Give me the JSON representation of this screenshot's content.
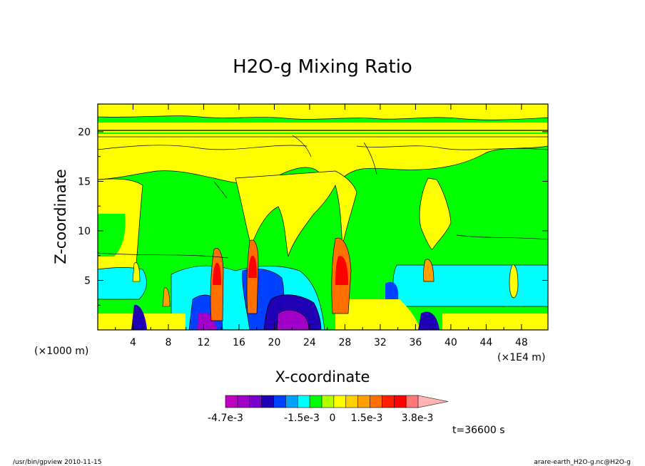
{
  "chart_data": {
    "type": "heatmap",
    "title": "H2O-g Mixing Ratio",
    "xlabel": "X-coordinate",
    "ylabel": "Z-coordinate",
    "x_unit_left": "(×1000 m)",
    "x_unit_right": "(×1E4 m)",
    "xlim": [
      0,
      51
    ],
    "ylim": [
      0,
      22.8
    ],
    "x_ticks": [
      "4",
      "8",
      "12",
      "16",
      "20",
      "24",
      "28",
      "32",
      "36",
      "40",
      "44",
      "48"
    ],
    "y_ticks": [
      "5",
      "10",
      "15",
      "20"
    ],
    "colorbar": {
      "labels": [
        "-4.7e-3",
        "-1.5e-3",
        "0",
        "1.5e-3",
        "3.8e-3"
      ],
      "colors": [
        "#c000c0",
        "#a000c8",
        "#7800c8",
        "#2000b4",
        "#0040ff",
        "#00a0ff",
        "#00ffff",
        "#00ff00",
        "#b4ff00",
        "#ffff00",
        "#ffd000",
        "#ffa000",
        "#ff7000",
        "#ff2000",
        "#ff0000",
        "#ff7878",
        "#ffb4b4"
      ]
    },
    "time_label": "t=36600 s",
    "background_level_color": "#00ff00"
  },
  "footer": {
    "left": "/usr/bin/gpview  2010-11-15",
    "right": "arare-earth_H2O-g.nc@H2O-g"
  }
}
